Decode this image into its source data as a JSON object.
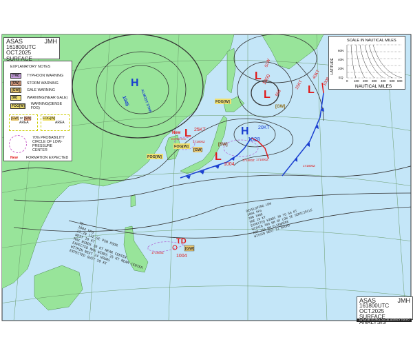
{
  "header": {
    "agency": "ASAS",
    "center": "JMH",
    "datetime": "161800UTC OCT.2025",
    "title": "SURFACE ANALYSIS"
  },
  "footer": {
    "agency": "ASAS",
    "center": "JMH",
    "datetime": "161800UTC OCT.2025",
    "title": "SURFACE ANALYSIS",
    "credit": "JAPAN METEOROLOGICAL AGENCY TOKYO"
  },
  "notes": {
    "heading": "EXPLANATORY NOTES",
    "items": [
      {
        "tag": "[TW]",
        "label": "TYPHOON WARNING",
        "color": "#7a2a8a"
      },
      {
        "tag": "[SW]",
        "label": "STORM WARNING",
        "color": "#a0522d"
      },
      {
        "tag": "[GW]",
        "label": "GALE WARNING",
        "color": "#8b6914"
      },
      {
        "tag": "[W]",
        "label": "WARNING(NEAR GALE)",
        "color": "#8b7d14"
      },
      {
        "tag": "FOG[W]",
        "label": "WARNING(DENSE FOG)",
        "color": "#8b7d14"
      }
    ],
    "area_warning": {
      "tags": [
        "[GW]",
        "[SW]"
      ],
      "or": "or",
      "label": "AREA"
    },
    "area_fog": {
      "tag": "FOG[W]",
      "label": "AREA"
    },
    "probability_circle": "70% PROBABILITY CIRCLE OF LOW-PRESSURE CENTER",
    "new_tag": "New",
    "new_label": "FORMATION EXPECTED"
  },
  "scale": {
    "title": "SCALE IN NAUTICAL MILES",
    "ylabel": "LATITUDE",
    "xlabel": "NAUTICAL MILES",
    "lat_ticks": [
      "60N",
      "40N",
      "20N",
      "EQ"
    ],
    "nm_ticks": [
      "0",
      "100",
      "200",
      "300",
      "400",
      "500",
      "600"
    ]
  },
  "systems": [
    {
      "type": "H",
      "pressure": "1045",
      "motion": "ALMOST STNR",
      "color": "#1a3fd0"
    },
    {
      "type": "H",
      "pressure": "1028",
      "motion": "20KT",
      "color": "#1a3fd0"
    },
    {
      "type": "L",
      "pressure": "1004",
      "warning": "[SW]",
      "color": "#e01818"
    },
    {
      "type": "L",
      "pressure": "1000",
      "motion": "SLW",
      "color": "#e01818"
    },
    {
      "type": "L",
      "pressure": "998",
      "motion": "25KT",
      "warning": "[GW]",
      "color": "#e01818"
    },
    {
      "type": "L",
      "motion": "40KT",
      "pressure": "1008",
      "color": "#e01818"
    },
    {
      "type": "L",
      "new": "New",
      "motion": "25KT",
      "note": "EXPECTED",
      "color": "#e01818"
    },
    {
      "type": "TD",
      "pressure": "1004",
      "warning": "[GW]",
      "color": "#e01818"
    }
  ],
  "warnings": [
    "FOG[W]",
    "FOG[W]",
    "FOG[W]",
    "[GW]"
  ],
  "forecast_times": [
    "171800Z",
    "171800Z",
    "171800Z",
    "171800Z",
    "171800Z"
  ],
  "td_text": [
    "TD",
    "1004 hPa",
    "13.2N 132.5E PSN POOR",
    "WEST 10 KT",
    "MAX WINDS 30 KT NEAR CENTER",
    "EXPECTED MAX WINDS 35 KT NEAR CENTER",
    "WITHIN NEXT 24 HOURS",
    "EXPECTED GUST 50 KT"
  ],
  "low_text": [
    "DEVELOPING LOW",
    "1004 hPa",
    "38N 140E",
    "ENE 20 KT",
    "EXPECTED WINDS 30 TO 50 KT",
    "WITHIN 300 NM OF LOW SE SEMICIRCLE",
    "AND 210 NM ELSEWHERE",
    "WITHIN NEXT 12 HOURS"
  ],
  "colors": {
    "ocean": "#c4e6f8",
    "land": "#98e49a",
    "isobar": "#333333",
    "cold_front": "#1a3fd0",
    "warm_front": "#e01818",
    "forecast": "#b060d0"
  }
}
